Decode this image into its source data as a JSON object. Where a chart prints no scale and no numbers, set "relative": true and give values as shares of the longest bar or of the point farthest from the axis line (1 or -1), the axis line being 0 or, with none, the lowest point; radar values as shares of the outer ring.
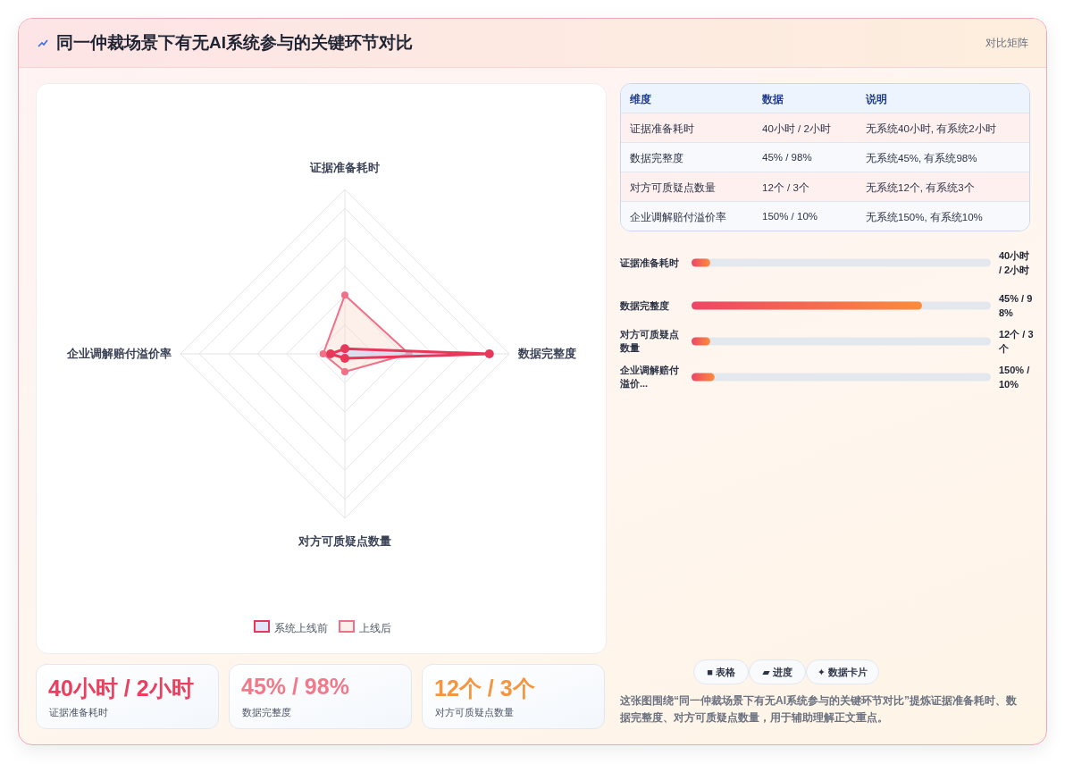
{
  "chart_data": [
    {
      "type": "other",
      "title": "同一仲裁场景下有无AI系统参与的关键环节对比",
      "subtitle": "对比矩阵"
    },
    {
      "type": "radar",
      "relative": true,
      "grid": true,
      "legend": "bottom",
      "marker": "circle",
      "categories": [
        "证据准备耗时",
        "数据完整度",
        "对方可质疑点数量",
        "企业调解赔付溢价率"
      ],
      "series": [
        {
          "name": "系统上线前",
          "color": "#e8385a",
          "values": [
            0.031,
            0.879,
            0.027,
            0.087
          ]
        },
        {
          "name": "上线后",
          "color": "#f07088",
          "values": [
            0.357,
            0.39,
            0.109,
            0.132
          ]
        }
      ]
    },
    {
      "type": "other",
      "annotations": [
        "维度",
        "数据",
        "说明",
        "证据准备耗时",
        "40小时 / 2小时",
        "无系统40小时, 有系统2小时",
        "数据完整度",
        "45% / 98%",
        "无系统45%, 有系统98%",
        "对方可质疑点数量",
        "12个 / 3个",
        "无系统12个, 有系统3个",
        "企业调解赔付溢价率",
        "150% / 10%",
        "无系统150%, 有系统10%"
      ]
    },
    {
      "type": "bar",
      "orientation": "horizontal",
      "relative": true,
      "categories": [
        "证据准备耗时",
        "数据完整度",
        "对方可质疑点数量",
        "企业调解赔付溢价..."
      ],
      "annotations": [
        "40小时 / 2小时",
        "45% / 98%",
        "12个 / 3个",
        "150% / 10%"
      ],
      "series": [
        {
          "color": "#ef4565",
          "values": [
            0.081,
            1,
            0.081,
            0.1
          ]
        }
      ]
    },
    {
      "type": "other",
      "annotations": [
        "40小时 / 2小时",
        "证据准备耗时",
        "45% / 98%",
        "数据完整度",
        "12个 / 3个",
        "对方可质疑点数量"
      ]
    },
    {
      "type": "other",
      "annotations": [
        "■ 表格",
        "▰ 进度",
        "✦ 数据卡片",
        "这张图围绕“同一仲裁场景下有无AI系统参与的关键环节对比”提炼证据准备耗时、数据完整度、对方可质疑点数量，用于辅助理解正文重点。"
      ]
    }
  ]
}
